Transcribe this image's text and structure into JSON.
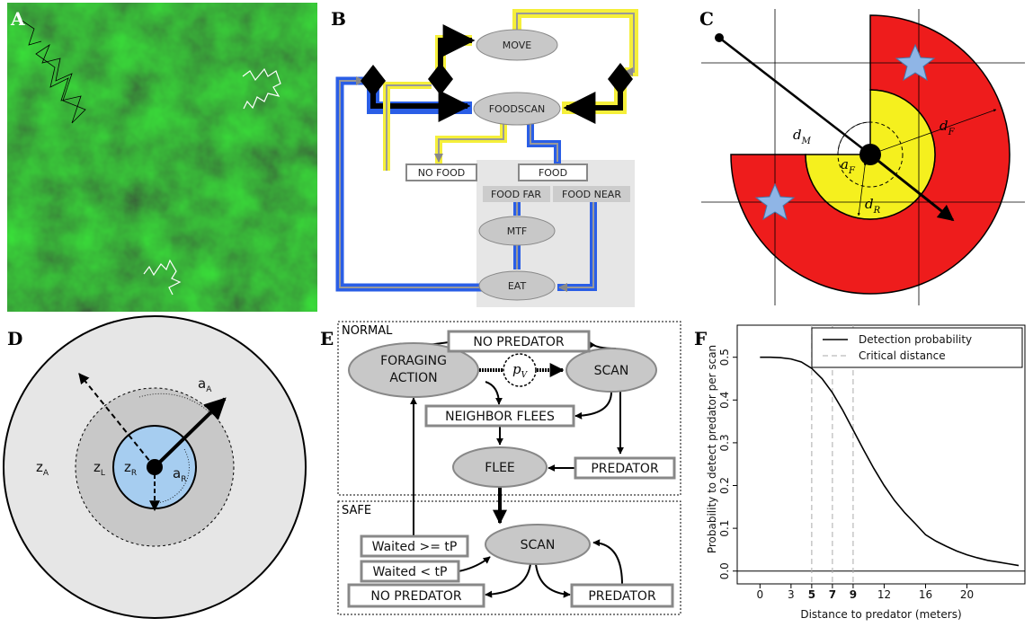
{
  "panel_labels": [
    "A",
    "B",
    "C",
    "D",
    "E",
    "F"
  ],
  "diagram_b": {
    "nodes": [
      "MOVE",
      "FOODSCAN",
      "NO FOOD",
      "FOOD",
      "FOOD FAR",
      "FOOD NEAR",
      "MTF",
      "EAT"
    ]
  },
  "diagram_c": {
    "labels": [
      {
        "main": "d",
        "sub": "M"
      },
      {
        "main": "d",
        "sub": "F"
      },
      {
        "main": "a",
        "sub": "F"
      },
      {
        "main": "d",
        "sub": "R"
      }
    ]
  },
  "diagram_d": {
    "labels": [
      {
        "main": "z",
        "sub": "A"
      },
      {
        "main": "z",
        "sub": "L"
      },
      {
        "main": "z",
        "sub": "R"
      },
      {
        "main": "a",
        "sub": "A"
      },
      {
        "main": "a",
        "sub": "R"
      }
    ]
  },
  "diagram_e": {
    "regions": [
      "NORMAL",
      "SAFE"
    ],
    "nodes": [
      "NO PREDATOR",
      "FORAGING",
      "ACTION",
      "SCAN",
      "NEIGHBOR FLEES",
      "FLEE",
      "PREDATOR",
      "SCAN",
      "Waited >= tP",
      "Waited < tP",
      "NO PREDATOR",
      "PREDATOR"
    ],
    "p": {
      "main": "p",
      "sub": "V"
    }
  },
  "chart_data": {
    "type": "line",
    "x_label": "Distance to predator (meters)",
    "y_label": "Probability to detect predator per scan",
    "x": [
      0,
      1,
      2,
      3,
      4,
      5,
      6,
      7,
      8,
      9,
      10,
      11,
      12,
      13,
      14,
      15,
      16,
      17,
      18,
      19,
      20,
      21,
      22,
      23,
      24,
      25
    ],
    "series": [
      {
        "name": "Detection probability",
        "color": "#000000",
        "values": [
          0.5,
          0.5,
          0.499,
          0.496,
          0.489,
          0.474,
          0.45,
          0.417,
          0.376,
          0.33,
          0.284,
          0.24,
          0.2,
          0.165,
          0.136,
          0.111,
          0.085,
          0.07,
          0.058,
          0.047,
          0.038,
          0.031,
          0.025,
          0.021,
          0.017,
          0.013
        ]
      }
    ],
    "critical_distances": {
      "name": "Critical distance",
      "color": "#aaaaaa",
      "values": [
        5,
        7,
        9
      ]
    },
    "xlim": [
      -2.2,
      25.6
    ],
    "ylim": [
      -0.03,
      0.575
    ],
    "xticks": [
      0,
      3,
      5,
      7,
      9,
      12,
      16,
      20
    ],
    "yticks": [
      {
        "value": 0,
        "label": "0.0"
      },
      0.1,
      0.2,
      0.3,
      0.4,
      0.5
    ],
    "zero_line": true,
    "legend": "top-right"
  }
}
